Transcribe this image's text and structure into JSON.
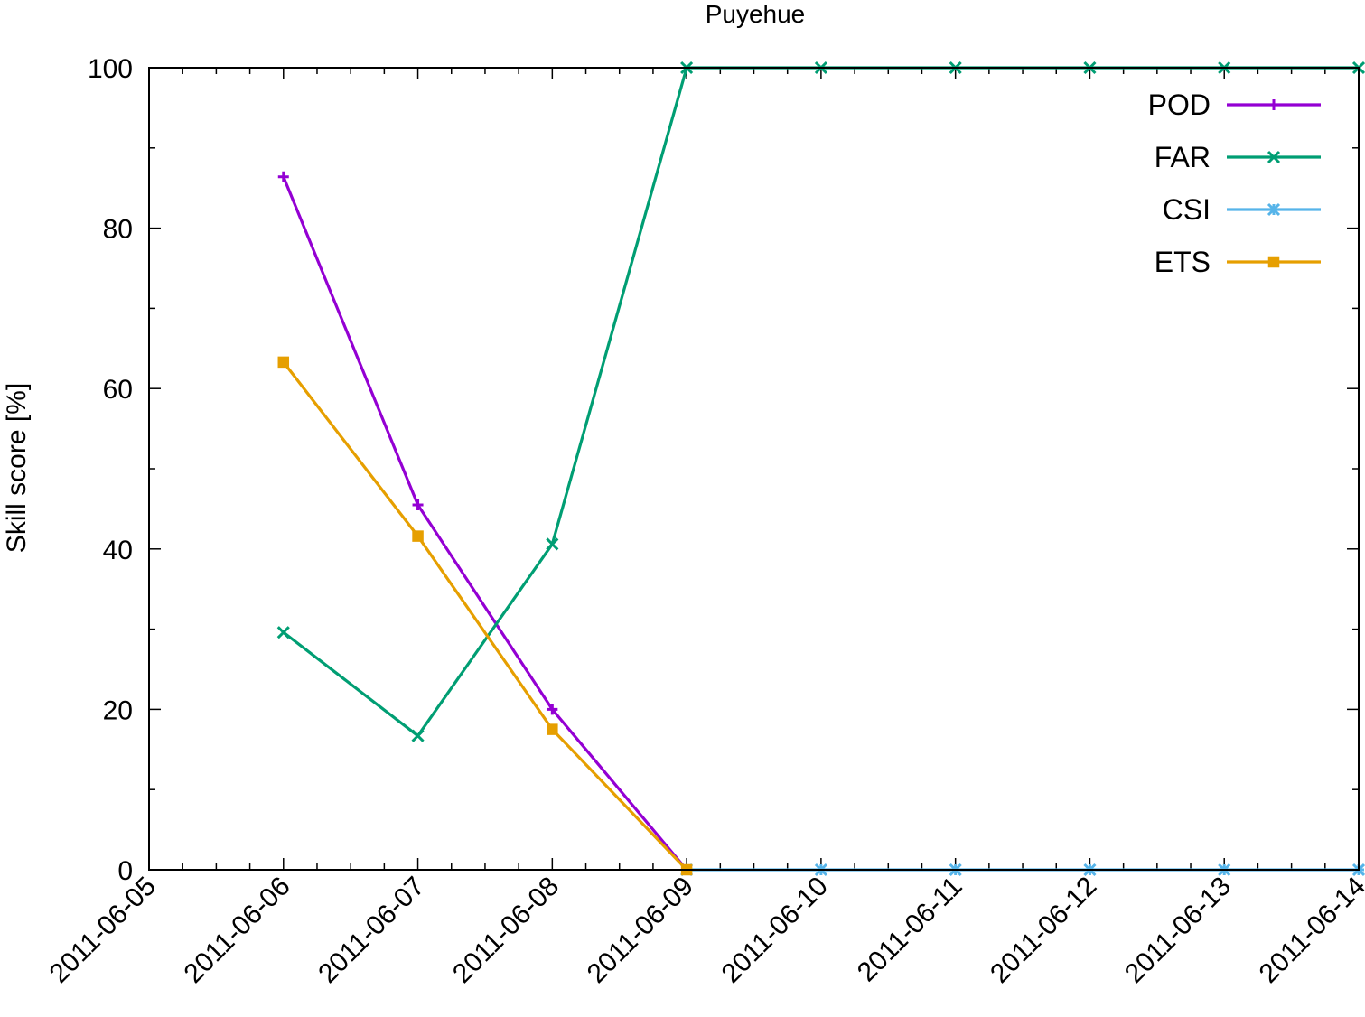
{
  "chart_data": {
    "type": "line",
    "title": "Puyehue",
    "xlabel": "",
    "ylabel": "Skill score [%]",
    "x": [
      "2011-06-06",
      "2011-06-07",
      "2011-06-08",
      "2011-06-09",
      "2011-06-10",
      "2011-06-11",
      "2011-06-12",
      "2011-06-13",
      "2011-06-14"
    ],
    "x_ticks": [
      "2011-06-05",
      "2011-06-06",
      "2011-06-07",
      "2011-06-08",
      "2011-06-09",
      "2011-06-10",
      "2011-06-11",
      "2011-06-12",
      "2011-06-13",
      "2011-06-14"
    ],
    "xlim": [
      "2011-06-05",
      "2011-06-14"
    ],
    "ylim": [
      0,
      100
    ],
    "y_ticks": [
      0,
      20,
      40,
      60,
      80,
      100
    ],
    "grid": false,
    "legend_position": "top-right",
    "series": [
      {
        "name": "POD",
        "color": "#9400d3",
        "marker": "plus",
        "values": [
          86.4,
          45.5,
          20.0,
          0,
          null,
          null,
          null,
          null,
          null
        ]
      },
      {
        "name": "FAR",
        "color": "#009e73",
        "marker": "cross",
        "values": [
          29.6,
          16.7,
          40.6,
          100,
          100,
          100,
          100,
          100,
          100
        ]
      },
      {
        "name": "CSI",
        "color": "#56b4e9",
        "marker": "star",
        "values": [
          null,
          null,
          null,
          0,
          0,
          0,
          0,
          0,
          0
        ]
      },
      {
        "name": "ETS",
        "color": "#e69f00",
        "marker": "square",
        "values": [
          63.3,
          41.6,
          17.5,
          0,
          null,
          null,
          null,
          null,
          null
        ]
      }
    ]
  }
}
